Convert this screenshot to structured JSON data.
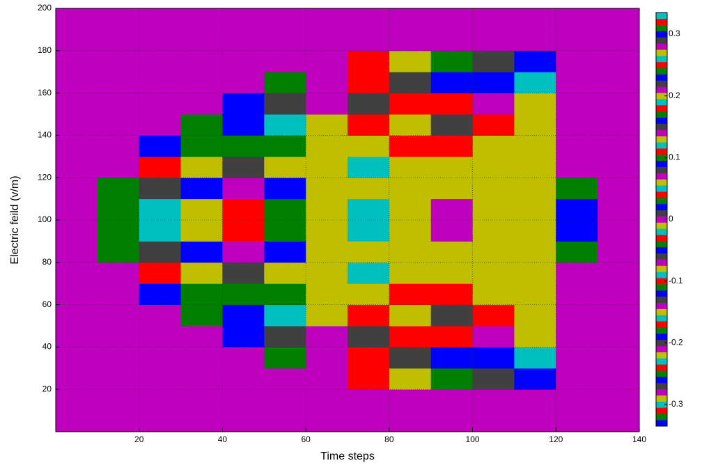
{
  "chart_data": {
    "type": "heatmap",
    "xlabel": "Time steps",
    "ylabel": "Electric feild (v/m)",
    "xlim": [
      0,
      140
    ],
    "xticks": [
      20,
      40,
      60,
      80,
      100,
      120,
      140
    ],
    "ylim": [
      0,
      200
    ],
    "yticks": [
      20,
      40,
      60,
      80,
      100,
      120,
      140,
      160,
      180,
      200
    ],
    "grid": true,
    "x": [
      5,
      15,
      25,
      35,
      45,
      55,
      65,
      75,
      85,
      95,
      105,
      115,
      125,
      135
    ],
    "y": [
      5,
      15,
      25,
      35,
      45,
      55,
      65,
      75,
      85,
      95,
      105,
      115,
      125,
      135,
      145,
      155,
      165,
      175,
      185,
      195
    ],
    "z": [
      [
        0,
        0,
        0,
        0,
        0,
        0,
        0,
        0,
        0,
        0,
        0,
        0,
        0,
        0
      ],
      [
        0,
        0,
        0,
        0,
        0,
        0,
        0,
        0,
        0,
        0,
        0,
        0,
        0,
        0
      ],
      [
        0,
        0,
        0,
        0,
        0,
        0,
        0,
        0.04,
        -0.08,
        0.1,
        -0.06,
        0.02,
        0,
        0
      ],
      [
        0,
        0,
        0,
        0,
        0,
        0.03,
        -0.07,
        0.11,
        -0.13,
        0.09,
        -0.12,
        0.05,
        0,
        0
      ],
      [
        0,
        0,
        0,
        0,
        0.02,
        -0.06,
        0.14,
        -0.2,
        0.18,
        -0.1,
        0.07,
        -0.015,
        0,
        0
      ],
      [
        0,
        0,
        0,
        0.03,
        -0.05,
        0.12,
        -0.22,
        0.25,
        -0.15,
        0.08,
        -0.03,
        -0.015,
        0,
        0
      ],
      [
        0,
        0,
        0.02,
        -0.04,
        0.1,
        -0.18,
        -0.015,
        0.2,
        -0.03,
        -0.03,
        -0.015,
        -0.015,
        0,
        0
      ],
      [
        0,
        0,
        0.04,
        -0.08,
        0.15,
        0.06,
        -0.015,
        0.12,
        -0.015,
        -0.015,
        -0.015,
        -0.015,
        0,
        0
      ],
      [
        0,
        0.03,
        -0.06,
        0.16,
        0.28,
        0.09,
        -0.015,
        0.06,
        -0.015,
        -0.015,
        -0.015,
        -0.015,
        0.03,
        0
      ],
      [
        0,
        0.03,
        -0.09,
        0.2,
        0.32,
        0.1,
        -0.015,
        0.05,
        -0.015,
        0,
        -0.015,
        -0.015,
        -0.05,
        0
      ],
      [
        0,
        0.03,
        -0.09,
        0.2,
        0.32,
        0.1,
        -0.015,
        0.05,
        -0.015,
        0,
        -0.015,
        -0.015,
        -0.05,
        0
      ],
      [
        0,
        0.03,
        -0.06,
        0.16,
        0.28,
        0.09,
        -0.015,
        0.06,
        -0.015,
        -0.015,
        -0.015,
        -0.015,
        0.03,
        0
      ],
      [
        0,
        0,
        0.04,
        -0.08,
        0.15,
        0.06,
        -0.015,
        0.12,
        -0.015,
        -0.015,
        -0.015,
        -0.015,
        0,
        0
      ],
      [
        0,
        0,
        0.02,
        -0.04,
        0.1,
        -0.18,
        -0.015,
        0.2,
        -0.03,
        -0.03,
        -0.015,
        -0.015,
        0,
        0
      ],
      [
        0,
        0,
        0,
        0.03,
        -0.05,
        0.12,
        -0.22,
        0.25,
        -0.15,
        0.08,
        -0.03,
        -0.015,
        0,
        0
      ],
      [
        0,
        0,
        0,
        0,
        0.02,
        -0.06,
        0.14,
        -0.2,
        0.18,
        -0.1,
        0.07,
        -0.015,
        0,
        0
      ],
      [
        0,
        0,
        0,
        0,
        0,
        0.03,
        -0.07,
        0.11,
        -0.13,
        0.09,
        -0.12,
        0.05,
        0,
        0
      ],
      [
        0,
        0,
        0,
        0,
        0,
        0,
        0,
        0.04,
        -0.08,
        0.1,
        -0.06,
        0.02,
        0,
        0
      ],
      [
        0,
        0,
        0,
        0,
        0,
        0,
        0,
        0,
        0,
        0,
        0,
        0,
        0,
        0
      ],
      [
        0,
        0,
        0,
        0,
        0,
        0,
        0,
        0,
        0,
        0,
        0,
        0,
        0,
        0
      ]
    ],
    "clim": [
      -0.335,
      0.335
    ],
    "levels": 67,
    "colormap": [
      "#0000ff",
      "#008000",
      "#ff0000",
      "#00bfbf",
      "#bfbf00",
      "#bf00bf",
      "#404040"
    ],
    "cticks": [
      -0.3,
      -0.2,
      -0.1,
      0,
      0.1,
      0.2,
      0.3
    ]
  }
}
